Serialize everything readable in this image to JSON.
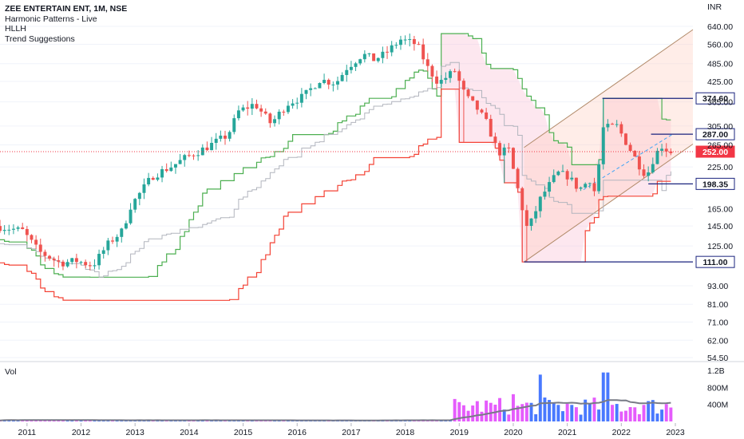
{
  "legend": {
    "symbol": "ZEE ENTERTAIN ENT, 1M, NSE",
    "indicators": [
      "Harmonic Patterns - Live",
      "HLLH",
      "Trend Suggestions"
    ]
  },
  "volume_label": "Vol",
  "colors": {
    "up": "#26a69a",
    "down": "#ef5350",
    "vol_up": "#2962ff",
    "vol_down": "#e040fb",
    "hl_upper": "#4caf50",
    "hl_lower": "#f44336",
    "hl_mid": "#b2b5be",
    "channel": "#b08968",
    "level_box": "#1a237e",
    "current": "#f23645",
    "cloud_pink": "#f8bbd0",
    "cloud_orange": "#ffccbc",
    "vol_ma": "#787b86"
  },
  "chart_data": {
    "type": "candlestick",
    "y_axis": {
      "unit": "INR",
      "scale": "log",
      "ticks": [
        640,
        560,
        485,
        425,
        365,
        305,
        265,
        225,
        165,
        145,
        125,
        93,
        81,
        71,
        62,
        54.5
      ],
      "tick_labels": [
        "640.00",
        "560.00",
        "485.00",
        "425.00",
        "365.00",
        "305.00",
        "265.00",
        "225.00",
        "165.00",
        "145.00",
        "125.00",
        "93.00",
        "81.00",
        "71.00",
        "62.00",
        "54.50"
      ]
    },
    "x_axis": {
      "ticks": [
        "2011",
        "2012",
        "2013",
        "2014",
        "2015",
        "2016",
        "2017",
        "2018",
        "2019",
        "2020",
        "2021",
        "2022",
        "2023"
      ]
    },
    "price_levels": [
      {
        "label": "374.60",
        "value": 374.6
      },
      {
        "label": "287.00",
        "value": 287.0
      },
      {
        "label": "252.00",
        "value": 252.0,
        "current": true
      },
      {
        "label": "198.35",
        "value": 198.35
      },
      {
        "label": "111.00",
        "value": 111.0
      }
    ],
    "volume_axis": {
      "tick_labels": [
        "1.2B",
        "800M",
        "400M"
      ],
      "ticks": [
        1200,
        800,
        400
      ],
      "unit": "millions"
    },
    "price_anchors": [
      {
        "t": 2010.5,
        "p": 145
      },
      {
        "t": 2011.0,
        "p": 140
      },
      {
        "t": 2011.3,
        "p": 120
      },
      {
        "t": 2011.7,
        "p": 110
      },
      {
        "t": 2012.0,
        "p": 112
      },
      {
        "t": 2012.3,
        "p": 108
      },
      {
        "t": 2012.6,
        "p": 128
      },
      {
        "t": 2012.85,
        "p": 140
      },
      {
        "t": 2013.0,
        "p": 168
      },
      {
        "t": 2013.4,
        "p": 210
      },
      {
        "t": 2013.8,
        "p": 228
      },
      {
        "t": 2014.0,
        "p": 240
      },
      {
        "t": 2014.4,
        "p": 260
      },
      {
        "t": 2014.8,
        "p": 285
      },
      {
        "t": 2015.0,
        "p": 340
      },
      {
        "t": 2015.3,
        "p": 360
      },
      {
        "t": 2015.6,
        "p": 310
      },
      {
        "t": 2015.9,
        "p": 360
      },
      {
        "t": 2016.2,
        "p": 380
      },
      {
        "t": 2016.5,
        "p": 430
      },
      {
        "t": 2016.8,
        "p": 420
      },
      {
        "t": 2017.0,
        "p": 470
      },
      {
        "t": 2017.3,
        "p": 520
      },
      {
        "t": 2017.5,
        "p": 500
      },
      {
        "t": 2017.7,
        "p": 520
      },
      {
        "t": 2018.0,
        "p": 580
      },
      {
        "t": 2018.3,
        "p": 560
      },
      {
        "t": 2018.5,
        "p": 470
      },
      {
        "t": 2018.7,
        "p": 420
      },
      {
        "t": 2019.0,
        "p": 460
      },
      {
        "t": 2019.2,
        "p": 380
      },
      {
        "t": 2019.4,
        "p": 350
      },
      {
        "t": 2019.6,
        "p": 310
      },
      {
        "t": 2019.8,
        "p": 250
      },
      {
        "t": 2020.0,
        "p": 255
      },
      {
        "t": 2020.2,
        "p": 180
      },
      {
        "t": 2020.35,
        "p": 140
      },
      {
        "t": 2020.6,
        "p": 180
      },
      {
        "t": 2020.9,
        "p": 215
      },
      {
        "t": 2021.1,
        "p": 210
      },
      {
        "t": 2021.3,
        "p": 190
      },
      {
        "t": 2021.5,
        "p": 205
      },
      {
        "t": 2021.6,
        "p": 185
      },
      {
        "t": 2021.75,
        "p": 300
      },
      {
        "t": 2022.0,
        "p": 305
      },
      {
        "t": 2022.2,
        "p": 265
      },
      {
        "t": 2022.4,
        "p": 230
      },
      {
        "t": 2022.55,
        "p": 210
      },
      {
        "t": 2022.7,
        "p": 245
      },
      {
        "t": 2022.85,
        "p": 265
      },
      {
        "t": 2022.95,
        "p": 252
      }
    ]
  }
}
